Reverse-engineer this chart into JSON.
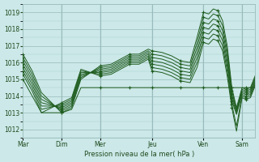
{
  "title": "Pression niveau de la mer( hPa )",
  "bg_color": "#cce8e8",
  "grid_color_major": "#99bbbb",
  "grid_color_minor": "#aacccc",
  "line_color": "#1e5c1e",
  "ylim": [
    1011.5,
    1019.5
  ],
  "yticks": [
    1012,
    1013,
    1014,
    1015,
    1016,
    1017,
    1018,
    1019
  ],
  "day_labels": [
    "Mar",
    "Dim",
    "Mer",
    "Jeu",
    "Ven",
    "Sam"
  ],
  "day_x": [
    0,
    0.167,
    0.333,
    0.556,
    0.778,
    0.944
  ],
  "series": [
    {
      "x": [
        0.0,
        0.04,
        0.08,
        0.167,
        0.21,
        0.25,
        0.333,
        0.38,
        0.42,
        0.46,
        0.5,
        0.54,
        0.556,
        0.6,
        0.64,
        0.68,
        0.72,
        0.75,
        0.778,
        0.8,
        0.82,
        0.84,
        0.86,
        0.88,
        0.9,
        0.92,
        0.944,
        0.96,
        0.98,
        1.0
      ],
      "y": [
        1016.5,
        1015.5,
        1014.2,
        1013.0,
        1013.3,
        1015.0,
        1015.8,
        1015.9,
        1016.2,
        1016.5,
        1016.5,
        1016.8,
        1016.7,
        1016.6,
        1016.4,
        1016.1,
        1016.0,
        1017.5,
        1019.0,
        1018.9,
        1019.2,
        1019.1,
        1018.5,
        1017.0,
        1014.5,
        1013.3,
        1014.5,
        1014.4,
        1014.5,
        1015.2
      ]
    },
    {
      "x": [
        0.0,
        0.04,
        0.08,
        0.167,
        0.21,
        0.25,
        0.333,
        0.38,
        0.42,
        0.46,
        0.5,
        0.54,
        0.556,
        0.6,
        0.64,
        0.68,
        0.72,
        0.75,
        0.778,
        0.8,
        0.82,
        0.84,
        0.86,
        0.88,
        0.9,
        0.92,
        0.944,
        0.96,
        0.98,
        1.0
      ],
      "y": [
        1016.3,
        1015.3,
        1014.0,
        1013.1,
        1013.4,
        1015.1,
        1015.7,
        1015.8,
        1016.1,
        1016.4,
        1016.4,
        1016.7,
        1016.5,
        1016.4,
        1016.2,
        1015.9,
        1015.8,
        1017.2,
        1018.7,
        1018.6,
        1018.9,
        1018.8,
        1018.2,
        1016.7,
        1014.3,
        1013.2,
        1014.4,
        1014.3,
        1014.4,
        1015.1
      ]
    },
    {
      "x": [
        0.0,
        0.04,
        0.08,
        0.167,
        0.21,
        0.25,
        0.333,
        0.38,
        0.42,
        0.46,
        0.5,
        0.54,
        0.556,
        0.6,
        0.64,
        0.68,
        0.72,
        0.75,
        0.778,
        0.8,
        0.82,
        0.84,
        0.86,
        0.88,
        0.9,
        0.92,
        0.944,
        0.96,
        0.98,
        1.0
      ],
      "y": [
        1016.1,
        1015.1,
        1013.8,
        1013.2,
        1013.5,
        1015.2,
        1015.6,
        1015.7,
        1016.0,
        1016.3,
        1016.3,
        1016.6,
        1016.3,
        1016.2,
        1016.0,
        1015.7,
        1015.6,
        1016.9,
        1018.4,
        1018.3,
        1018.6,
        1018.5,
        1017.9,
        1016.4,
        1014.1,
        1013.1,
        1014.3,
        1014.2,
        1014.3,
        1015.0
      ]
    },
    {
      "x": [
        0.0,
        0.04,
        0.08,
        0.167,
        0.21,
        0.25,
        0.333,
        0.38,
        0.42,
        0.46,
        0.5,
        0.54,
        0.556,
        0.6,
        0.64,
        0.68,
        0.72,
        0.75,
        0.778,
        0.8,
        0.82,
        0.84,
        0.86,
        0.88,
        0.9,
        0.92,
        0.944,
        0.96,
        0.98,
        1.0
      ],
      "y": [
        1015.9,
        1014.9,
        1013.6,
        1013.3,
        1013.6,
        1015.3,
        1015.5,
        1015.6,
        1015.9,
        1016.2,
        1016.2,
        1016.5,
        1016.1,
        1016.0,
        1015.8,
        1015.5,
        1015.4,
        1016.6,
        1018.1,
        1018.0,
        1018.3,
        1018.2,
        1017.6,
        1016.1,
        1013.9,
        1013.0,
        1014.2,
        1014.1,
        1014.2,
        1014.9
      ]
    },
    {
      "x": [
        0.0,
        0.04,
        0.08,
        0.167,
        0.21,
        0.25,
        0.333,
        0.38,
        0.42,
        0.46,
        0.5,
        0.54,
        0.556,
        0.6,
        0.64,
        0.68,
        0.72,
        0.75,
        0.778,
        0.8,
        0.82,
        0.84,
        0.86,
        0.88,
        0.9,
        0.92,
        0.944,
        0.96,
        0.98,
        1.0
      ],
      "y": [
        1015.7,
        1014.7,
        1013.4,
        1013.4,
        1013.7,
        1015.4,
        1015.4,
        1015.5,
        1015.8,
        1016.1,
        1016.1,
        1016.4,
        1015.9,
        1015.8,
        1015.6,
        1015.3,
        1015.2,
        1016.3,
        1017.8,
        1017.7,
        1018.0,
        1017.9,
        1017.3,
        1015.8,
        1013.7,
        1012.9,
        1014.1,
        1014.0,
        1014.1,
        1014.8
      ]
    },
    {
      "x": [
        0.0,
        0.04,
        0.08,
        0.167,
        0.21,
        0.25,
        0.333,
        0.38,
        0.42,
        0.46,
        0.5,
        0.54,
        0.556,
        0.6,
        0.64,
        0.68,
        0.72,
        0.75,
        0.778,
        0.8,
        0.82,
        0.84,
        0.86,
        0.88,
        0.9,
        0.92,
        0.944,
        0.96,
        0.98,
        1.0
      ],
      "y": [
        1015.5,
        1014.5,
        1013.2,
        1013.5,
        1013.8,
        1015.5,
        1015.3,
        1015.4,
        1015.7,
        1016.0,
        1016.0,
        1016.3,
        1015.7,
        1015.6,
        1015.4,
        1015.1,
        1015.0,
        1016.0,
        1017.5,
        1017.4,
        1017.7,
        1017.6,
        1017.0,
        1015.5,
        1013.5,
        1012.2,
        1014.0,
        1013.9,
        1014.0,
        1014.7
      ]
    },
    {
      "x": [
        0.0,
        0.04,
        0.08,
        0.167,
        0.21,
        0.25,
        0.333,
        0.38,
        0.42,
        0.46,
        0.5,
        0.54,
        0.556,
        0.6,
        0.64,
        0.68,
        0.72,
        0.75,
        0.778,
        0.8,
        0.82,
        0.84,
        0.86,
        0.88,
        0.9,
        0.92,
        0.944,
        0.96,
        0.98,
        1.0
      ],
      "y": [
        1015.3,
        1014.3,
        1013.0,
        1013.6,
        1013.9,
        1015.6,
        1015.2,
        1015.3,
        1015.6,
        1015.9,
        1015.9,
        1016.2,
        1015.5,
        1015.4,
        1015.2,
        1014.9,
        1014.8,
        1015.7,
        1017.2,
        1017.1,
        1017.4,
        1017.3,
        1016.7,
        1015.2,
        1013.3,
        1011.9,
        1013.9,
        1013.8,
        1013.9,
        1014.6
      ]
    },
    {
      "x": [
        0.0,
        0.04,
        0.08,
        0.167,
        0.21,
        0.25,
        0.333,
        0.38,
        0.42,
        0.46,
        0.5,
        0.54,
        0.556,
        0.6,
        0.64,
        0.68,
        0.72,
        0.75,
        0.778,
        0.8,
        0.82,
        0.84,
        0.86,
        0.88,
        0.9,
        0.92,
        0.944,
        0.96,
        0.98,
        1.0
      ],
      "y": [
        1015.0,
        1014.0,
        1013.0,
        1013.0,
        1013.2,
        1014.5,
        1014.5,
        1014.5,
        1014.5,
        1014.5,
        1014.5,
        1014.5,
        1014.5,
        1014.5,
        1014.5,
        1014.5,
        1014.5,
        1014.5,
        1014.5,
        1014.5,
        1014.5,
        1014.5,
        1014.5,
        1014.5,
        1014.5,
        1014.5,
        1014.5,
        1014.5,
        1014.5,
        1014.5
      ]
    }
  ],
  "xlabel_fontsize": 6,
  "tick_fontsize": 5.5
}
